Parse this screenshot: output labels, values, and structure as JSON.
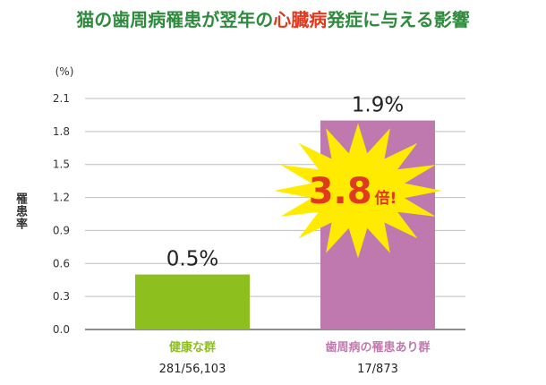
{
  "title": {
    "before": "猫の歯周病罹患が翌年の",
    "highlight": "心臓病",
    "after": "発症に与える影響",
    "color": "#2e8b3e",
    "highlight_color": "#e03a1e"
  },
  "burst": {
    "ratio": "3.8",
    "suffix": "倍!",
    "fill": "#ffeb00",
    "text_color": "#e03a1e"
  },
  "chart_data": {
    "type": "bar",
    "categories": [
      "健康な群",
      "歯周病の罹患あり群"
    ],
    "counts": [
      "281/56,103",
      "17/873"
    ],
    "values": [
      0.5,
      1.9
    ],
    "data_labels": [
      "0.5%",
      "1.9%"
    ],
    "ylabel": "罹患率",
    "yunit": "(%)",
    "ylim": [
      0,
      2.1
    ],
    "yticks": [
      "0.0",
      "0.3",
      "0.6",
      "0.9",
      "1.2",
      "1.5",
      "1.8",
      "2.1"
    ],
    "colors": [
      "#8dbf1f",
      "#bf79ae"
    ],
    "label_colors": [
      "#8dbf1f",
      "#bf79ae"
    ],
    "grid": true
  }
}
